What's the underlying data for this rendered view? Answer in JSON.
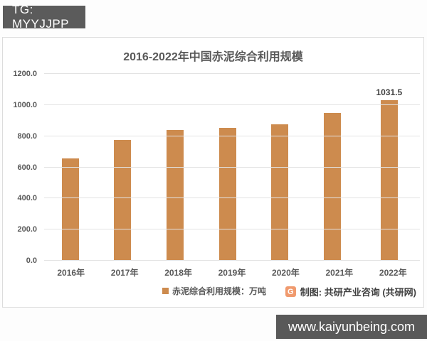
{
  "header": {
    "tg_label": "TG: MYYJJPP"
  },
  "chart": {
    "title": "2016-2022年中国赤泥综合利用规模",
    "legend_label": "赤泥综合利用规模：万吨",
    "attribution": "制图: 共研产业咨询 (共研网)",
    "logo_glyph": "G"
  },
  "chart_data": {
    "type": "bar",
    "title": "2016-2022年中国赤泥综合利用规模",
    "categories": [
      "2016年",
      "2017年",
      "2018年",
      "2019年",
      "2020年",
      "2021年",
      "2022年"
    ],
    "values": [
      655,
      775,
      838,
      853,
      877,
      950,
      1031.5
    ],
    "data_labels": {
      "2022年": "1031.5"
    },
    "y_ticks": [
      "0.0",
      "200.0",
      "400.0",
      "600.0",
      "800.0",
      "1000.0",
      "1200.0"
    ],
    "ylim": [
      0,
      1200
    ],
    "xlabel": "",
    "ylabel": "万吨",
    "grid": true,
    "legend": [
      "赤泥综合利用规模：万吨"
    ],
    "legend_position": "bottom",
    "bar_color": "#cd8b4e"
  },
  "colors": {
    "bar": "#cd8b4e",
    "title_text": "#595959",
    "axis_text": "#595959",
    "gridline": "#e3e3e3",
    "badge_bg": "#5b5b5b",
    "footer_bg": "#595959",
    "card_border": "#dcdcdc"
  },
  "footer": {
    "url": "www.kaiyunbeing.com"
  }
}
